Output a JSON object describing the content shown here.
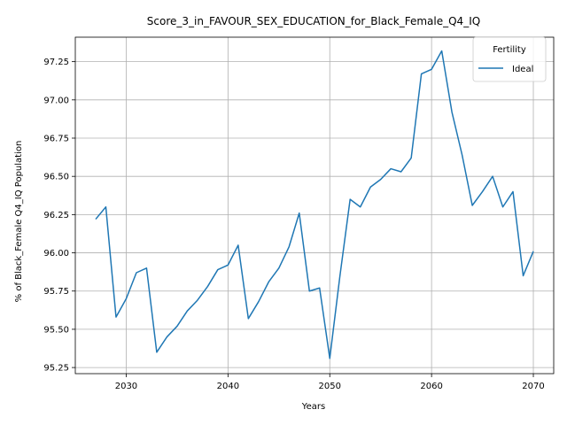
{
  "chart_data": {
    "type": "line",
    "title": "Score_3_in_FAVOUR_SEX_EDUCATION_for_Black_Female_Q4_IQ",
    "xlabel": "Years",
    "ylabel": "% of Black_Female Q4_IQ Population",
    "xlim": [
      2025,
      2072
    ],
    "ylim": [
      95.21,
      97.41
    ],
    "xticks": [
      2030,
      2040,
      2050,
      2060,
      2070
    ],
    "yticks": [
      95.25,
      95.5,
      95.75,
      96.0,
      96.25,
      96.5,
      96.75,
      97.0,
      97.25
    ],
    "ytick_labels": [
      "95.25",
      "95.50",
      "95.75",
      "96.00",
      "96.25",
      "96.50",
      "96.75",
      "97.00",
      "97.25"
    ],
    "grid": true,
    "legend": {
      "title": "Fertility",
      "placement": "top-right"
    },
    "series": [
      {
        "name": "Ideal",
        "color": "#1f77b4",
        "x": [
          2027,
          2028,
          2029,
          2030,
          2031,
          2032,
          2033,
          2034,
          2035,
          2036,
          2037,
          2038,
          2039,
          2040,
          2041,
          2042,
          2043,
          2044,
          2045,
          2046,
          2047,
          2048,
          2049,
          2050,
          2051,
          2052,
          2053,
          2054,
          2055,
          2056,
          2057,
          2058,
          2059,
          2060,
          2061,
          2062,
          2063,
          2064,
          2065,
          2066,
          2067,
          2068,
          2069,
          2070
        ],
        "values": [
          96.22,
          96.3,
          95.58,
          95.7,
          95.87,
          95.9,
          95.35,
          95.45,
          95.52,
          95.62,
          95.69,
          95.78,
          95.89,
          95.92,
          96.05,
          95.57,
          95.68,
          95.81,
          95.9,
          96.04,
          96.26,
          95.75,
          95.77,
          95.31,
          95.85,
          96.35,
          96.3,
          96.43,
          96.48,
          96.55,
          96.53,
          96.62,
          97.17,
          97.2,
          97.32,
          96.92,
          96.64,
          96.31,
          96.4,
          96.5,
          96.3,
          96.4,
          95.85,
          96.01
        ]
      }
    ]
  }
}
